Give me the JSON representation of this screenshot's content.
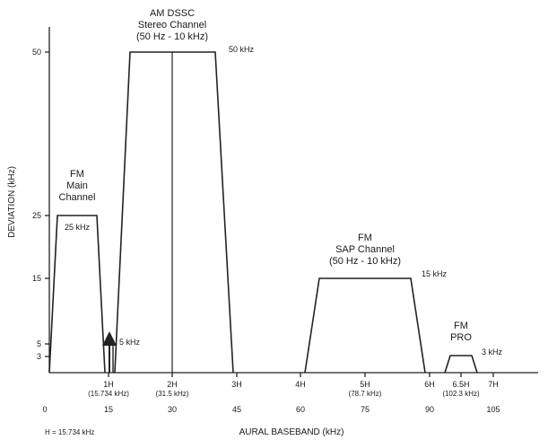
{
  "y_axis": {
    "label": "DEVIATION (kHz)",
    "ticks": [
      "50",
      "25",
      "15",
      "5",
      "3"
    ]
  },
  "x_axis": {
    "label": "AURAL BASEBAND (kHz)",
    "numbers": [
      "0",
      "15",
      "30",
      "45",
      "60",
      "75",
      "90",
      "105"
    ],
    "h_marks": [
      "1H",
      "2H",
      "3H",
      "4H",
      "5H",
      "6H",
      "6.5H",
      "7H"
    ],
    "h_values": [
      "(15.734 kHz)",
      "(31.5 kHz)",
      "(78.7 kHz)",
      "(102.3 kHz)"
    ]
  },
  "footnote": "H = 15.734 kHz",
  "channels": {
    "fm_main": {
      "line1": "FM",
      "line2": "Main",
      "line3": "Channel",
      "deviation": "25 kHz"
    },
    "am_dssc": {
      "line1": "AM DSSC",
      "line2": "Stereo Channel",
      "line3": "(50 Hz - 10 kHz)",
      "deviation": "50 kHz"
    },
    "pilot": {
      "deviation": "5 kHz"
    },
    "fm_sap": {
      "line1": "FM",
      "line2": "SAP Channel",
      "line3": "(50 Hz - 10 kHz)",
      "deviation": "15 kHz"
    },
    "fm_pro": {
      "line1": "FM",
      "line2": "PRO",
      "deviation": "3 kHz"
    }
  }
}
